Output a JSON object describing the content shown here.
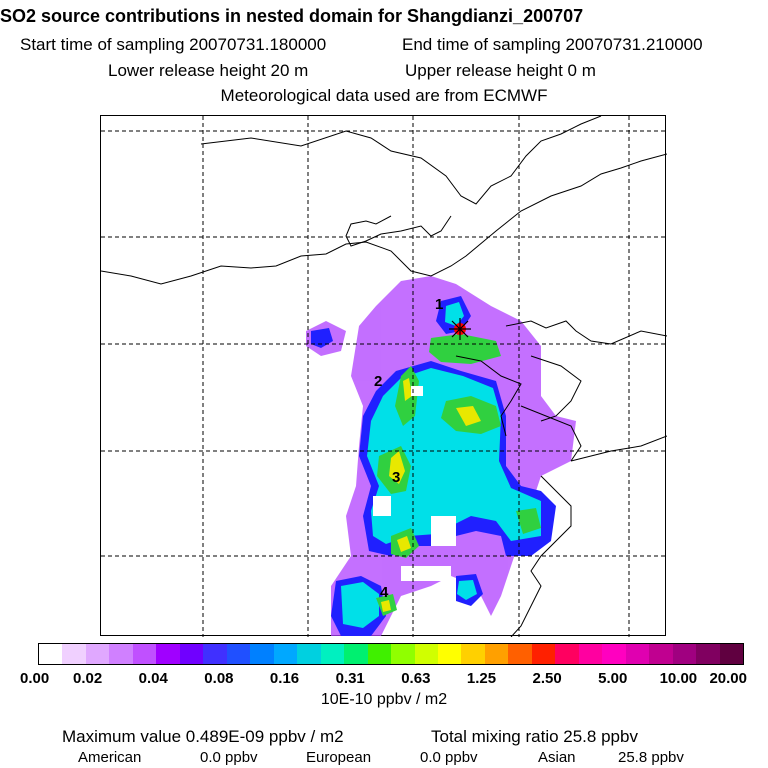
{
  "header": {
    "title": "SO2 source contributions in nested domain for Shangdianzi_200707",
    "start_time": "Start time of sampling 20070731.180000",
    "end_time": "End time of sampling 20070731.210000",
    "lower_release": "Lower release height   20 m",
    "upper_release": "Upper release height    0 m",
    "met_data": "Meteorological data used are from ECMWF"
  },
  "map": {
    "markers": [
      {
        "label": "1"
      },
      {
        "label": "2"
      },
      {
        "label": "3"
      },
      {
        "label": "4"
      }
    ],
    "station_marker": "asterisk-star",
    "colors": {
      "coast": "#000000",
      "grid": "#000000",
      "plume_purple": "#b040ff",
      "plume_blue": "#2020ff",
      "plume_cyan": "#00e0e8",
      "plume_green": "#30d040",
      "plume_yellow": "#e8e800",
      "station": "#ff0000"
    }
  },
  "colorbar": {
    "colors": [
      "#ffffff",
      "#f0d0ff",
      "#e0a8ff",
      "#d080ff",
      "#c050ff",
      "#a000ff",
      "#7000ff",
      "#4030ff",
      "#2050ff",
      "#0080ff",
      "#00a8ff",
      "#00d0e0",
      "#00f0c0",
      "#00f070",
      "#40f000",
      "#90ff00",
      "#d0ff00",
      "#ffff00",
      "#ffd000",
      "#ffa000",
      "#ff6000",
      "#ff2000",
      "#ff0060",
      "#ff00a0",
      "#ff00c0",
      "#e000b0",
      "#c00090",
      "#a00080",
      "#800060",
      "#600040"
    ],
    "tick_labels": [
      "0.00",
      "0.02",
      "0.04",
      "0.08",
      "0.16",
      "0.31",
      "0.63",
      "1.25",
      "2.50",
      "5.00",
      "10.00",
      "20.00"
    ],
    "unit": "10E-10 ppbv / m2"
  },
  "footer": {
    "max_value": "Maximum value  0.489E-09 ppbv / m2",
    "total_mixing": "Total mixing ratio      25.8 ppbv",
    "american_label": "American",
    "american_value": "0.0 ppbv",
    "european_label": "European",
    "european_value": "0.0 ppbv",
    "asian_label": "Asian",
    "asian_value": "25.8 ppbv"
  }
}
